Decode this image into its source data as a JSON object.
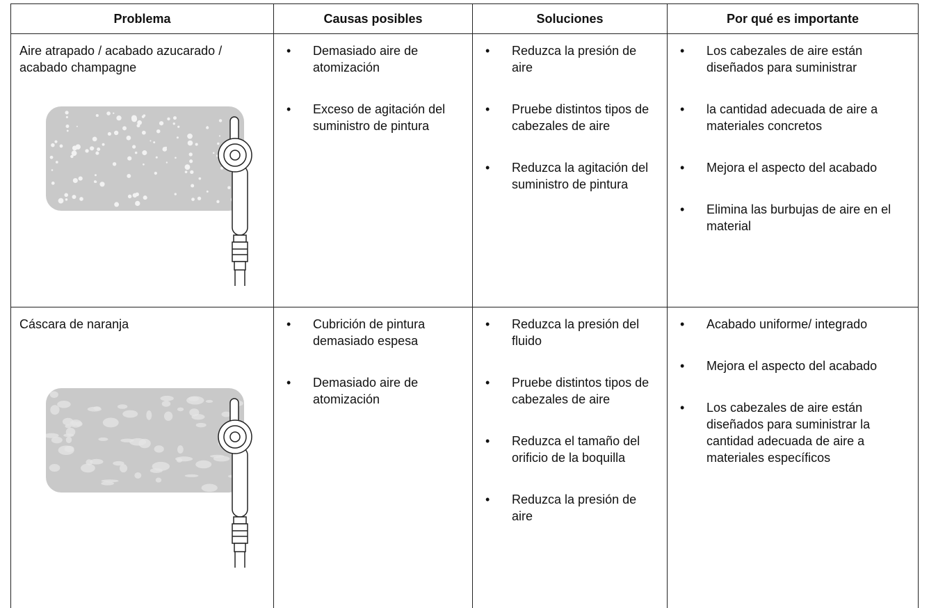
{
  "table": {
    "header": [
      "Problema",
      "Causas posibles",
      "Soluciones",
      "Por qué es importante"
    ],
    "rows": [
      {
        "problem": "Aire atrapado / acabado azucarado / acabado champagne",
        "causes": [
          "Demasiado aire de atomización",
          "Exceso de agitación del suministro de pintura"
        ],
        "solutions": [
          "Reduzca la presión de aire",
          "Pruebe distintos tipos de cabezales de aire",
          "Reduzca la agitación del suministro de pintura"
        ],
        "importance": [
          "Los cabezales de aire están diseñados para suministrar",
          "la cantidad adecuada de aire a materiales concretos",
          "Mejora el aspecto del acabado",
          "Elimina las burbujas de aire en el material"
        ]
      },
      {
        "problem": "Cáscara de naranja",
        "causes": [
          "Cubrición de pintura demasiado espesa",
          "Demasiado aire de atomización"
        ],
        "solutions": [
          "Reduzca la presión del fluido",
          "Pruebe distintos tipos de cabezales de aire",
          "Reduzca el tamaño del orificio de la boquilla",
          "Reduzca la presión de aire"
        ],
        "importance": [
          "Acabado uniforme/ integrado",
          "Mejora el aspecto del acabado",
          "Los cabezales de aire están diseñados para suministrar la cantidad adecuada de aire a materiales específicos"
        ]
      }
    ]
  }
}
